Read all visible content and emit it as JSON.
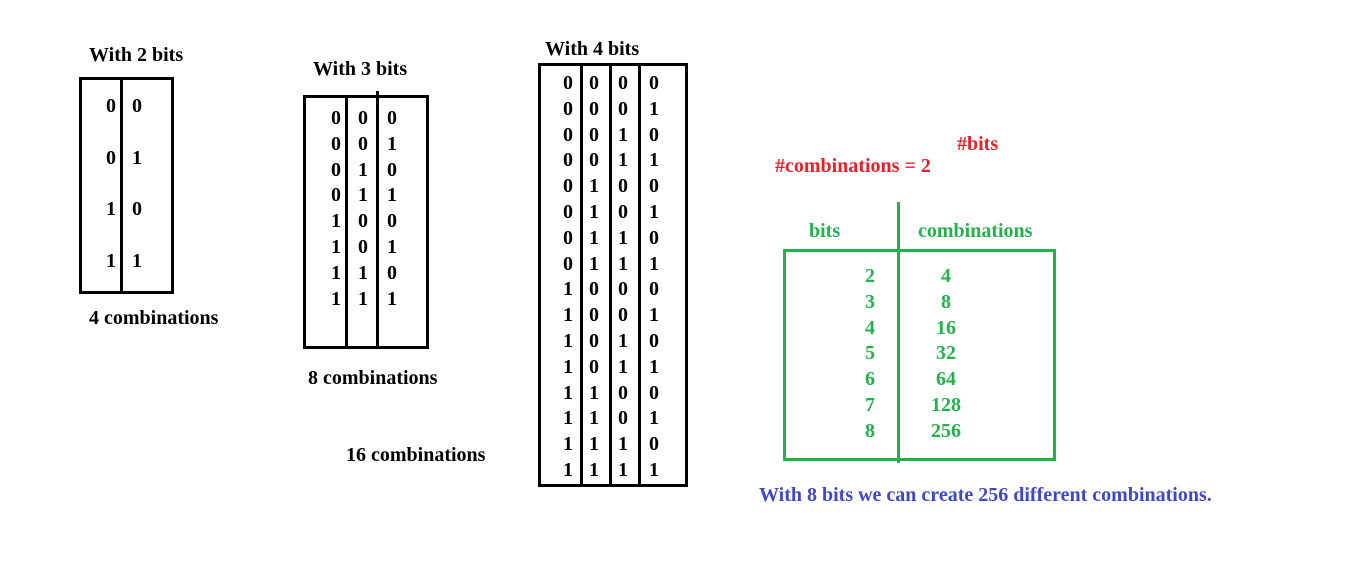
{
  "tables": [
    {
      "title": "With 2 bits",
      "rows": [
        [
          "0",
          "0"
        ],
        [
          "0",
          "1"
        ],
        [
          "1",
          "0"
        ],
        [
          "1",
          "1"
        ]
      ],
      "caption": "4 combinations"
    },
    {
      "title": "With 3 bits",
      "rows": [
        [
          "0",
          "0",
          "0"
        ],
        [
          "0",
          "0",
          "1"
        ],
        [
          "0",
          "1",
          "0"
        ],
        [
          "0",
          "1",
          "1"
        ],
        [
          "1",
          "0",
          "0"
        ],
        [
          "1",
          "0",
          "1"
        ],
        [
          "1",
          "1",
          "0"
        ],
        [
          "1",
          "1",
          "1"
        ]
      ],
      "caption": "8 combinations"
    },
    {
      "title": "With 4 bits",
      "rows": [
        [
          "0",
          "0",
          "0",
          "0"
        ],
        [
          "0",
          "0",
          "0",
          "1"
        ],
        [
          "0",
          "0",
          "1",
          "0"
        ],
        [
          "0",
          "0",
          "1",
          "1"
        ],
        [
          "0",
          "1",
          "0",
          "0"
        ],
        [
          "0",
          "1",
          "0",
          "1"
        ],
        [
          "0",
          "1",
          "1",
          "0"
        ],
        [
          "0",
          "1",
          "1",
          "1"
        ],
        [
          "1",
          "0",
          "0",
          "0"
        ],
        [
          "1",
          "0",
          "0",
          "1"
        ],
        [
          "1",
          "0",
          "1",
          "0"
        ],
        [
          "1",
          "0",
          "1",
          "1"
        ],
        [
          "1",
          "1",
          "0",
          "0"
        ],
        [
          "1",
          "1",
          "0",
          "1"
        ],
        [
          "1",
          "1",
          "1",
          "0"
        ],
        [
          "1",
          "1",
          "1",
          "1"
        ]
      ],
      "caption": "16 combinations"
    }
  ],
  "formula": {
    "exponent": "#bits",
    "base": "#combinations = 2"
  },
  "summary_table": {
    "header_bits": "bits",
    "header_combinations": "combinations",
    "rows": [
      {
        "bits": "2",
        "combinations": "4"
      },
      {
        "bits": "3",
        "combinations": "8"
      },
      {
        "bits": "4",
        "combinations": "16"
      },
      {
        "bits": "5",
        "combinations": "32"
      },
      {
        "bits": "6",
        "combinations": "64"
      },
      {
        "bits": "7",
        "combinations": "128"
      },
      {
        "bits": "8",
        "combinations": "256"
      }
    ]
  },
  "conclusion": "With 8 bits we can create 256 different combinations.",
  "colors": {
    "formula": "#e8202a",
    "summary": "#22b24c",
    "conclusion": "#3f48cc"
  }
}
